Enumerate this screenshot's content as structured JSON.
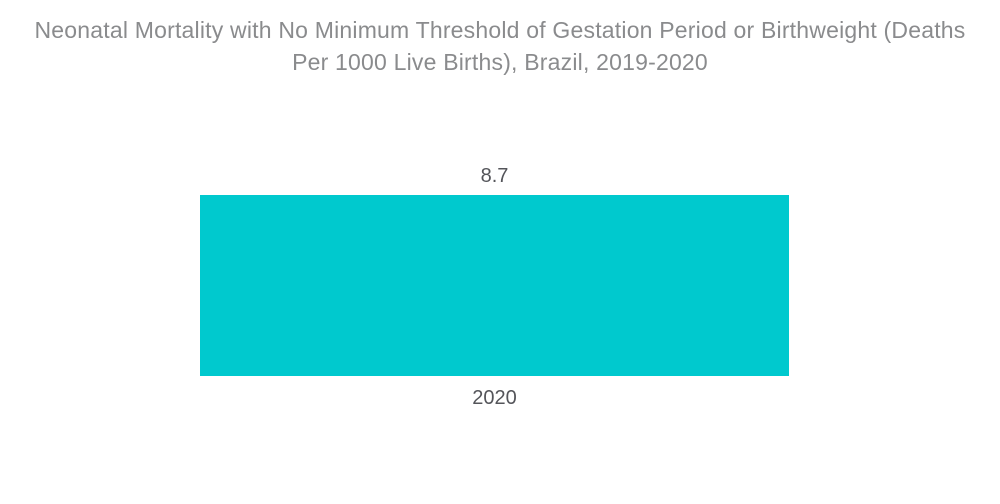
{
  "header": {
    "title_line1": "Neonatal Mortality with No Minimum Threshold of Gestation Period or Birthweight (Deaths",
    "title_line2": "Per 1000 Live Births), Brazil, 2019-2020"
  },
  "chart_data": {
    "type": "bar",
    "title": "Neonatal Mortality with No Minimum Threshold of Gestation Period or Birthweight (Deaths Per 1000 Live Births), Brazil, 2019-2020",
    "categories": [
      "2020"
    ],
    "values": [
      8.7
    ],
    "value_labels": [
      "8.7"
    ],
    "orientation": "vertical",
    "xlabel": "",
    "ylabel": "",
    "ylim": [
      0,
      8.7
    ],
    "grid": false,
    "legend": false,
    "axes_visible": false,
    "bar_color": "#00c9ce",
    "title_color": "#8a8b8d",
    "label_color": "#54555a",
    "background_color": "#ffffff"
  }
}
